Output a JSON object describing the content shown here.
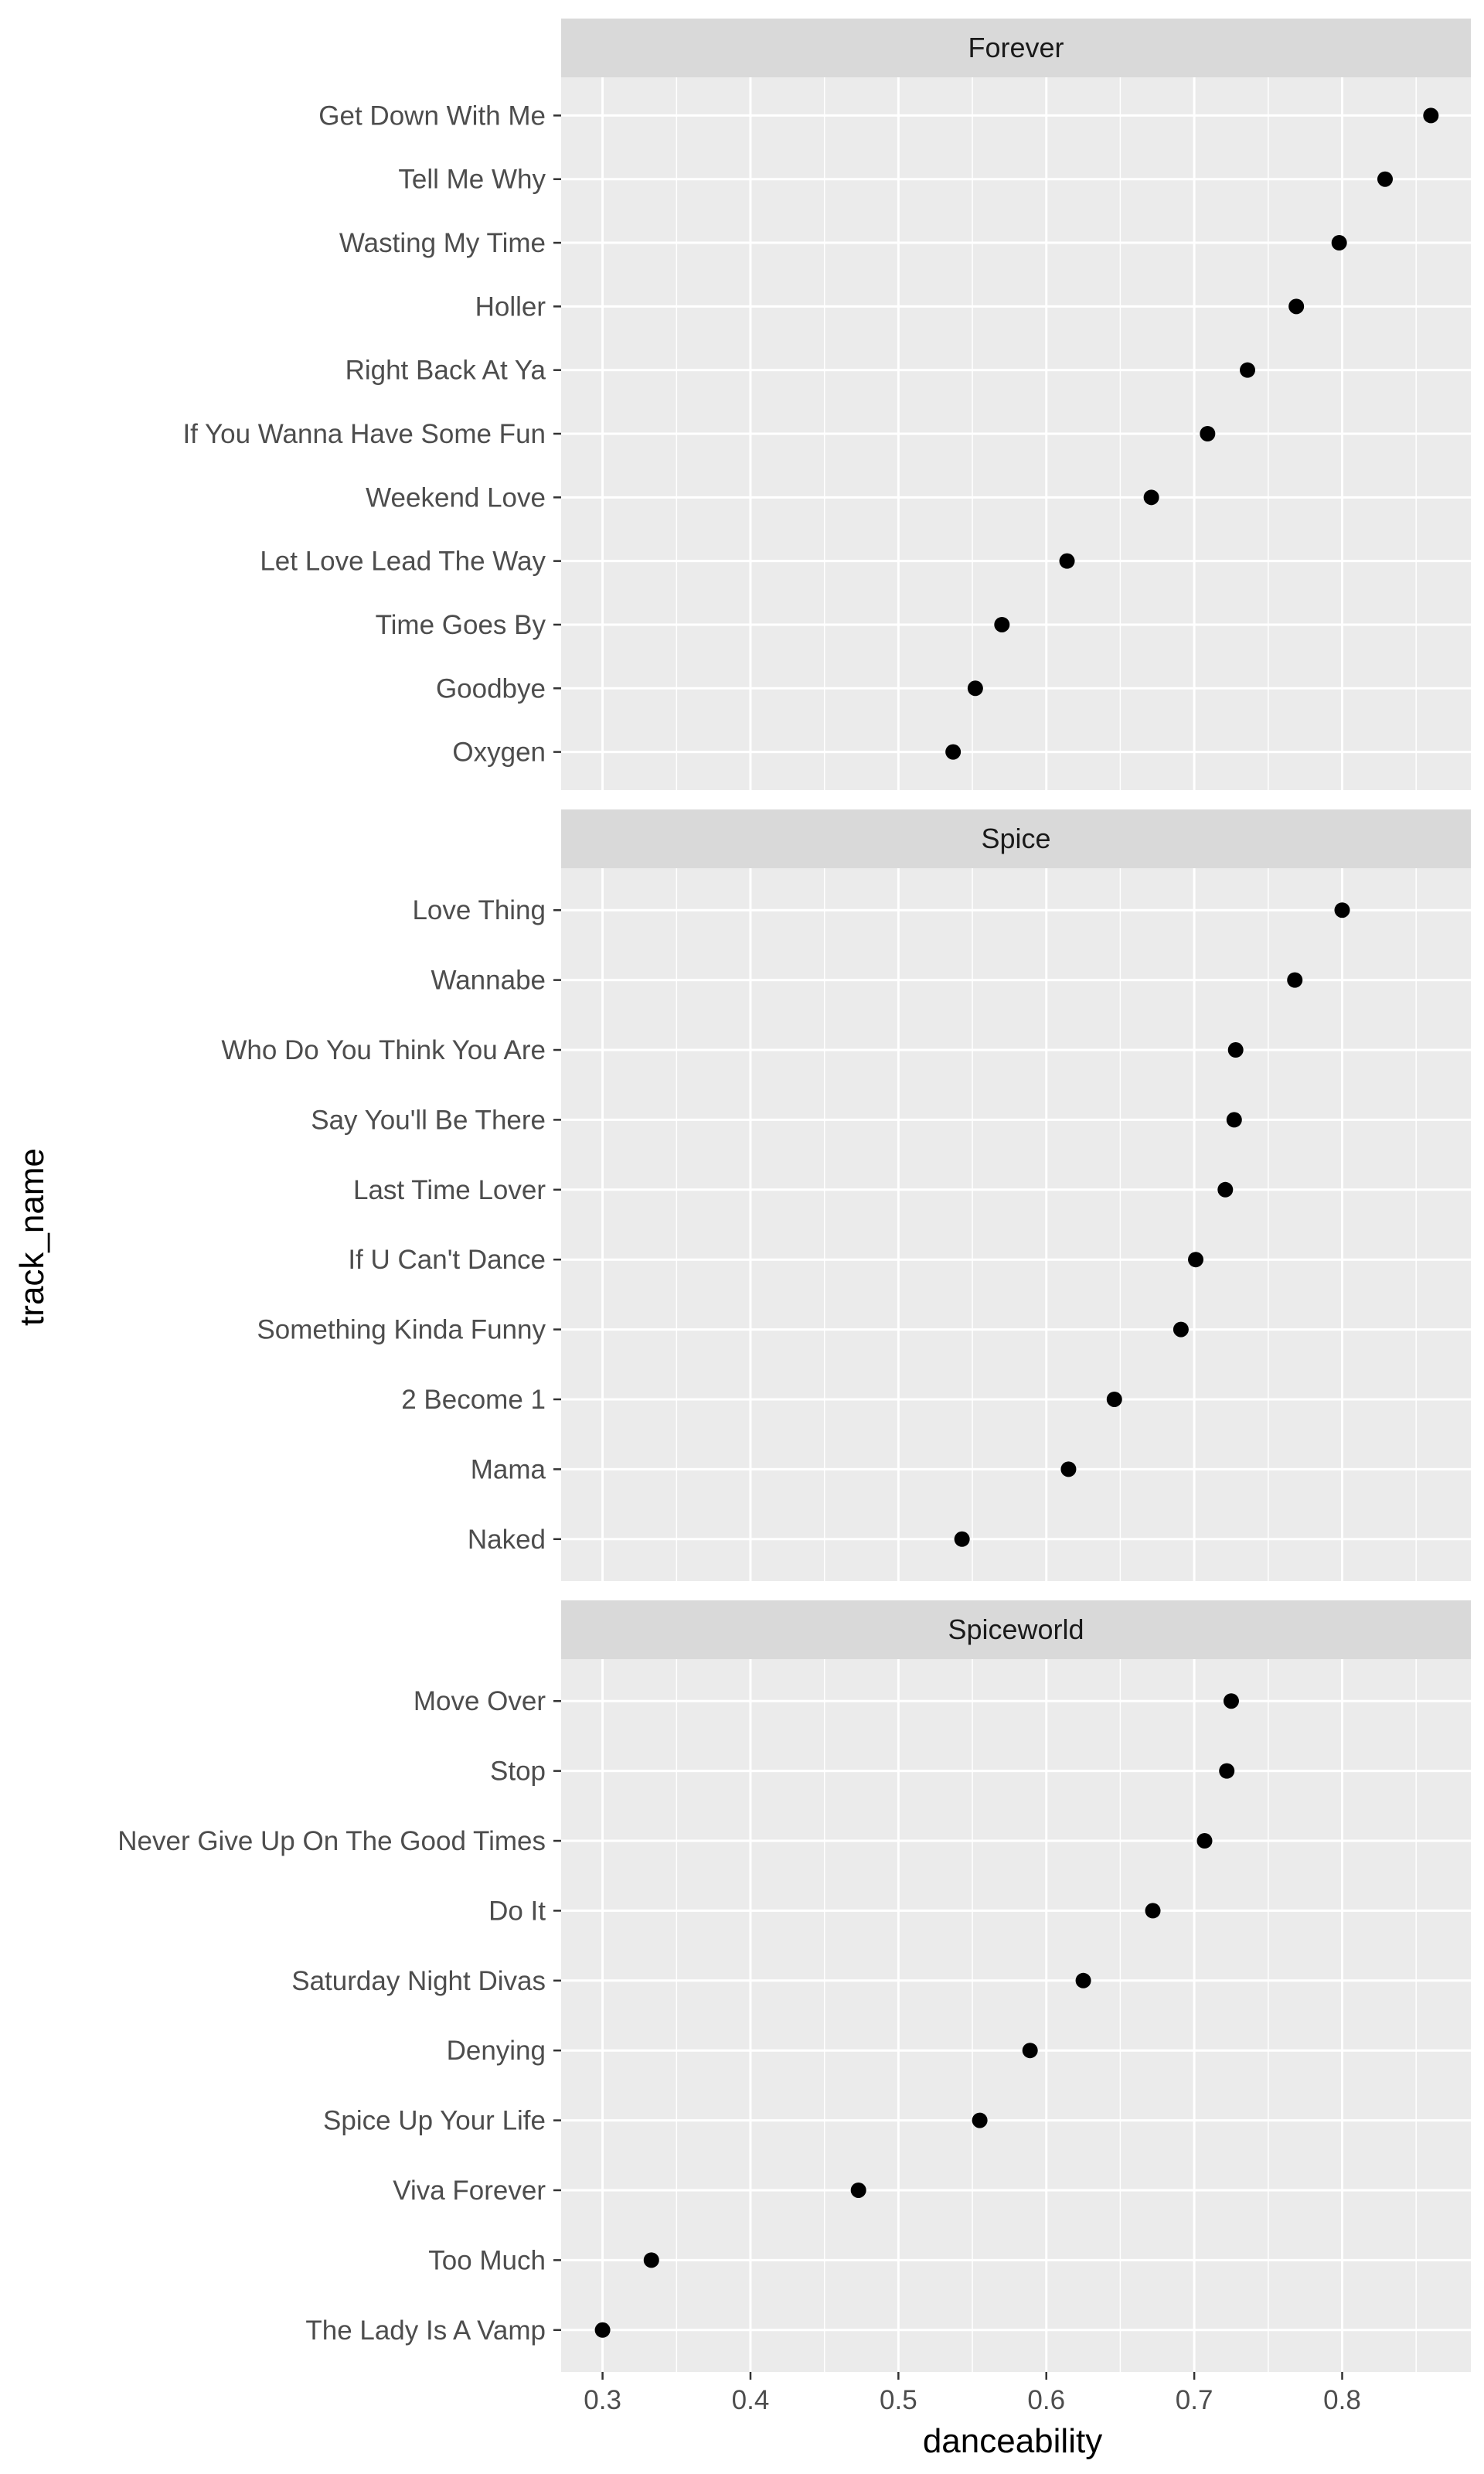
{
  "chart_data": {
    "type": "scatter",
    "xlabel": "danceability",
    "ylabel": "track_name",
    "xlim": [
      0.272,
      0.887
    ],
    "x_ticks": [
      "0.3",
      "0.4",
      "0.5",
      "0.6",
      "0.7",
      "0.8"
    ],
    "grid": true,
    "legend": "none",
    "colors": {
      "panel_bg": "#ebebeb",
      "strip_bg": "#d9d9d9",
      "grid": "#ffffff",
      "point": "#000000",
      "tick_text": "#4d4d4d"
    },
    "panels": [
      {
        "name": "Forever",
        "tracks": [
          {
            "name": "Get Down With Me",
            "danceability": 0.86
          },
          {
            "name": "Tell Me Why",
            "danceability": 0.829
          },
          {
            "name": "Wasting My Time",
            "danceability": 0.798
          },
          {
            "name": "Holler",
            "danceability": 0.769
          },
          {
            "name": "Right Back At Ya",
            "danceability": 0.736
          },
          {
            "name": "If You Wanna Have Some Fun",
            "danceability": 0.709
          },
          {
            "name": "Weekend Love",
            "danceability": 0.671
          },
          {
            "name": "Let Love Lead The Way",
            "danceability": 0.614
          },
          {
            "name": "Time Goes By",
            "danceability": 0.57
          },
          {
            "name": "Goodbye",
            "danceability": 0.552
          },
          {
            "name": "Oxygen",
            "danceability": 0.537
          }
        ]
      },
      {
        "name": "Spice",
        "tracks": [
          {
            "name": "Love Thing",
            "danceability": 0.8
          },
          {
            "name": "Wannabe",
            "danceability": 0.768
          },
          {
            "name": "Who Do You Think You Are",
            "danceability": 0.728
          },
          {
            "name": "Say You'll Be There",
            "danceability": 0.727
          },
          {
            "name": "Last Time Lover",
            "danceability": 0.721
          },
          {
            "name": "If U Can't Dance",
            "danceability": 0.701
          },
          {
            "name": "Something Kinda Funny",
            "danceability": 0.691
          },
          {
            "name": "2 Become 1",
            "danceability": 0.646
          },
          {
            "name": "Mama",
            "danceability": 0.615
          },
          {
            "name": "Naked",
            "danceability": 0.543
          }
        ]
      },
      {
        "name": "Spiceworld",
        "tracks": [
          {
            "name": "Move Over",
            "danceability": 0.725
          },
          {
            "name": "Stop",
            "danceability": 0.722
          },
          {
            "name": "Never Give Up On The Good Times",
            "danceability": 0.707
          },
          {
            "name": "Do It",
            "danceability": 0.672
          },
          {
            "name": "Saturday Night Divas",
            "danceability": 0.625
          },
          {
            "name": "Denying",
            "danceability": 0.589
          },
          {
            "name": "Spice Up Your Life",
            "danceability": 0.555
          },
          {
            "name": "Viva Forever",
            "danceability": 0.473
          },
          {
            "name": "Too Much",
            "danceability": 0.333
          },
          {
            "name": "The Lady Is A Vamp",
            "danceability": 0.3
          }
        ]
      }
    ]
  }
}
